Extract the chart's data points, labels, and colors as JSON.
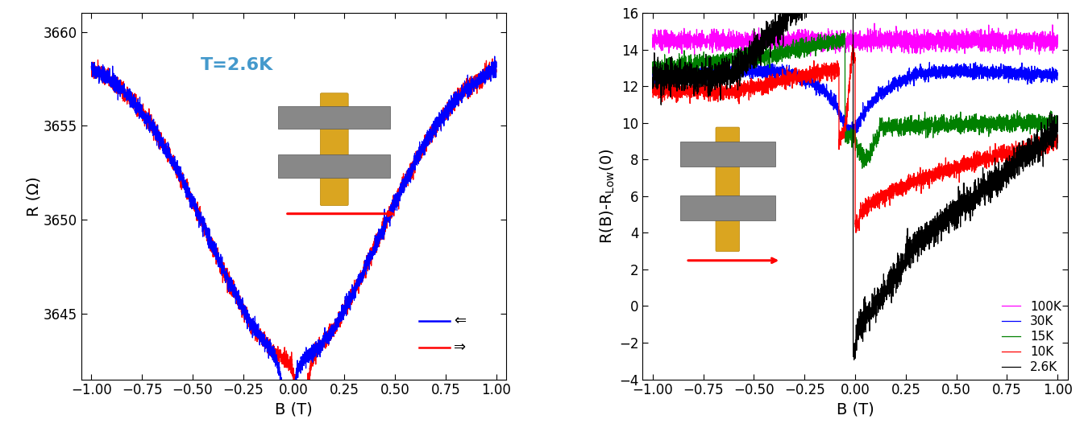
{
  "left_plot": {
    "title": "T=2.6K",
    "xlabel": "B (T)",
    "ylabel": "R (Ω)",
    "xlim": [
      -1.05,
      1.05
    ],
    "ylim": [
      3641.5,
      3661
    ],
    "yticks": [
      3645,
      3650,
      3655,
      3660
    ],
    "title_color": "#4499cc",
    "bg_color": "white"
  },
  "right_plot": {
    "xlabel": "B (T)",
    "ylabel": "R(B)-R$_{Low}$(0)",
    "xlim": [
      -1.05,
      1.05
    ],
    "ylim": [
      -4,
      16
    ],
    "yticks": [
      -4,
      -2,
      0,
      2,
      4,
      6,
      8,
      10,
      12,
      14,
      16
    ],
    "legend_labels": [
      "2.6K",
      "10K",
      "15K",
      "30K",
      "100K"
    ],
    "legend_colors": [
      "black",
      "red",
      "green",
      "blue",
      "magenta"
    ],
    "bg_color": "white"
  }
}
